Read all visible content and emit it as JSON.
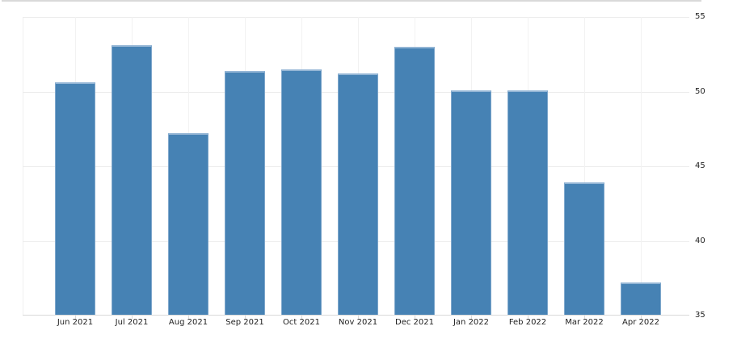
{
  "chart_data": {
    "type": "bar",
    "title": "",
    "xlabel": "",
    "ylabel": "",
    "categories": [
      "Jun 2021",
      "Jul 2021",
      "Aug 2021",
      "Sep 2021",
      "Oct 2021",
      "Nov 2021",
      "Dec 2021",
      "Jan 2022",
      "Feb 2022",
      "Mar 2022",
      "Apr 2022"
    ],
    "values": [
      50.6,
      53.1,
      47.2,
      51.4,
      51.5,
      51.2,
      53.0,
      50.1,
      50.1,
      43.9,
      37.2
    ],
    "ylim": [
      35,
      55
    ],
    "yticks": [
      55,
      50,
      45,
      40,
      35
    ],
    "y_axis_side": "right",
    "grid": true,
    "legend": "none",
    "colors": {
      "bar_fill": "#4682b4",
      "bar_edge": "#93b5d5",
      "h_gridline": "#ececec",
      "v_gridline": "#f2f2f2",
      "axis_line": "#d9d9d9",
      "label_text": "#222222",
      "background": "#ffffff"
    }
  }
}
